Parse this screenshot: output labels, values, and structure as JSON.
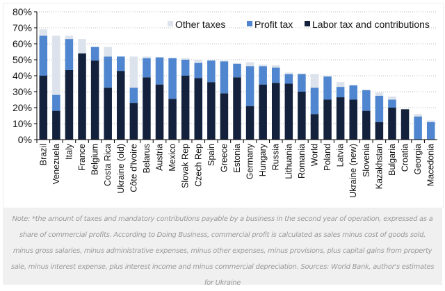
{
  "chart_data": {
    "type": "bar",
    "stacked": true,
    "title": "",
    "xlabel": "",
    "ylabel": "",
    "ylim": [
      0,
      80
    ],
    "yticks": [
      "0%",
      "10%",
      "20%",
      "30%",
      "40%",
      "50%",
      "60%",
      "70%",
      "80%"
    ],
    "grid": true,
    "legend_placement": "top-right",
    "categories": [
      "Brazil",
      "Venezuela",
      "Italy",
      "France",
      "Belgium",
      "Costa Rica",
      "Ukraine (old)",
      "Côte d'Ivoire",
      "Belarus",
      "Austria",
      "Mexico",
      "Slovak Rep",
      "Czech Rep",
      "Spain",
      "Greece",
      "Estonia",
      "Germany",
      "Hungary",
      "Russia",
      "Lithuania",
      "Romania",
      "World",
      "Poland",
      "Latvia",
      "Ukraine (new)",
      "Slovenia",
      "Kazakhstan",
      "Bulgaria",
      "Croatia",
      "Georgia",
      "Macedonia"
    ],
    "series": [
      {
        "name": "Labor tax and contributions",
        "color": "#14213d",
        "values": [
          40,
          18,
          43.5,
          54,
          49.5,
          32.5,
          43,
          23,
          39,
          34.5,
          25.5,
          40,
          38.5,
          36,
          29,
          39,
          21,
          34.5,
          35.5,
          35,
          30,
          16,
          25,
          26.5,
          25,
          18,
          11,
          20,
          19,
          0,
          0
        ]
      },
      {
        "name": "Profit tax",
        "color": "#4f86cf",
        "values": [
          25,
          10,
          19.5,
          0,
          8.5,
          19.5,
          9,
          9.5,
          12,
          17,
          25.5,
          10,
          9.5,
          13.5,
          20,
          8.5,
          25,
          11.5,
          9.5,
          6,
          11,
          16.5,
          14.5,
          6.5,
          9,
          13,
          16.5,
          5,
          0,
          14.5,
          11
        ]
      },
      {
        "name": "Other taxes",
        "color": "#dde3ec",
        "values": [
          4,
          37,
          2,
          9,
          0,
          6,
          0,
          19.5,
          1,
          0,
          0,
          1,
          2,
          0,
          0.5,
          0.5,
          2.5,
          1,
          1.5,
          1,
          0.5,
          8.5,
          0.5,
          3,
          0,
          0,
          2,
          2,
          0,
          1.5,
          1
        ]
      }
    ]
  },
  "note": "Note: *the amount of taxes and mandatory contributions payable by a business in the second year of operation, expressed as a share of commercial profits. According to Doing Business, commercial profit is calculated as sales minus cost of goods sold, minus gross salaries, minus administrative expenses, minus other expenses, minus provisions, plus capital gains from property sale, minus interest expense, plus interest income and minus commercial depreciation. Sources: World Bank, author's estimates for Ukraine"
}
